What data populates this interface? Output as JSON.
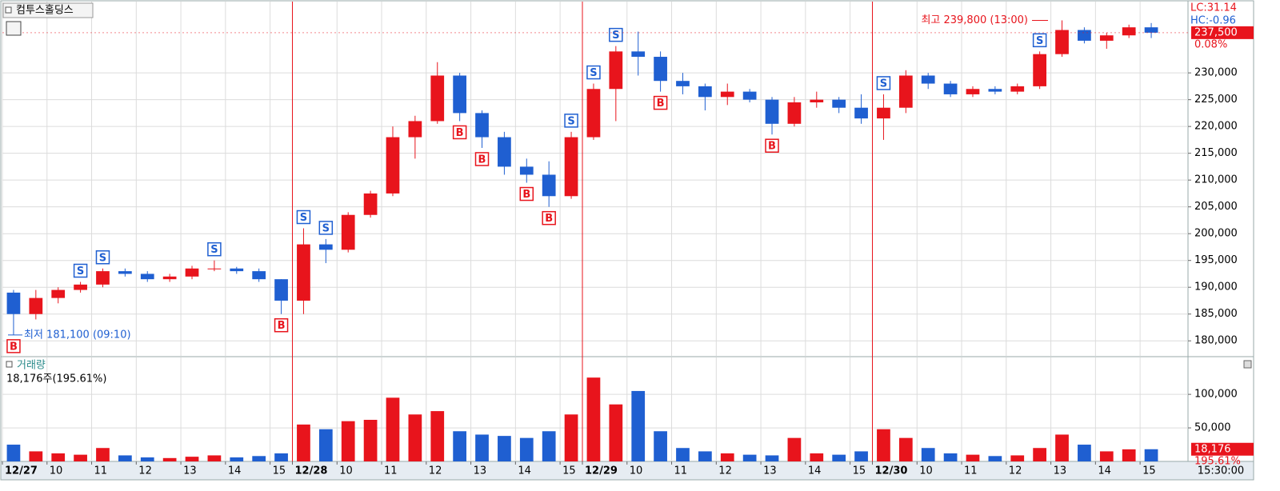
{
  "chart_data": {
    "type": "candlestick",
    "title": "컴투스홀딩스",
    "volume_title": "거래량",
    "volume_summary": "18,176주(195.61%)",
    "indicator_lc": "LC:31.14",
    "indicator_hc": "HC:-0.96",
    "time_label": "15:30:00",
    "up_color": "#e8141c",
    "down_color": "#1f5fd1",
    "categories": [
      "12/27",
      null,
      "10",
      null,
      "11",
      null,
      "12",
      null,
      "13",
      null,
      "14",
      null,
      "15",
      "12/28",
      null,
      "10",
      null,
      "11",
      null,
      "12",
      null,
      "13",
      null,
      "14",
      null,
      "15",
      "12/29",
      null,
      "10",
      null,
      "11",
      null,
      "12",
      null,
      "13",
      null,
      "14",
      null,
      "15",
      "12/30",
      null,
      "10",
      null,
      "11",
      null,
      "12",
      null,
      "13",
      null,
      "14",
      null,
      "15"
    ],
    "open": [
      189000,
      185000,
      188000,
      189500,
      190500,
      193000,
      192500,
      191500,
      192000,
      193500,
      193500,
      193000,
      191500,
      187500,
      198000,
      197000,
      203500,
      207500,
      218000,
      221000,
      229500,
      222500,
      218000,
      212500,
      211000,
      207000,
      218000,
      227000,
      234000,
      233000,
      228500,
      227500,
      225500,
      226500,
      225000,
      220500,
      224500,
      225000,
      223500,
      221500,
      223500,
      229500,
      228000,
      226000,
      227000,
      226500,
      227500,
      233500,
      238000,
      236000,
      237000,
      238500
    ],
    "high": [
      189500,
      189500,
      190000,
      191000,
      193500,
      193500,
      193000,
      192500,
      194000,
      195000,
      193800,
      193500,
      191500,
      201000,
      199000,
      204000,
      208000,
      220000,
      222000,
      232000,
      230000,
      223000,
      219000,
      214000,
      213500,
      219000,
      228000,
      235000,
      237700,
      234000,
      230000,
      228000,
      228000,
      227000,
      225500,
      225500,
      226500,
      225500,
      226000,
      226000,
      230500,
      230000,
      228500,
      227500,
      227500,
      228000,
      234000,
      239800,
      238500,
      237500,
      239000,
      239300
    ],
    "low": [
      181100,
      184000,
      187000,
      189000,
      190000,
      192000,
      191000,
      191000,
      191500,
      193000,
      192500,
      191000,
      185000,
      185000,
      194500,
      196500,
      203000,
      207000,
      214000,
      220500,
      221000,
      216000,
      211000,
      209500,
      205000,
      206500,
      217500,
      221000,
      229500,
      226500,
      226000,
      223000,
      224000,
      224500,
      218500,
      220000,
      223500,
      222500,
      220500,
      217500,
      222500,
      227000,
      225500,
      225500,
      226000,
      226000,
      227000,
      233000,
      235500,
      234500,
      236500,
      236500
    ],
    "close": [
      185000,
      188000,
      189500,
      190500,
      193000,
      192500,
      191500,
      192000,
      193500,
      193500,
      193000,
      191500,
      187500,
      198000,
      197000,
      203500,
      207500,
      218000,
      221000,
      229500,
      222500,
      218000,
      212500,
      211000,
      207000,
      218000,
      227000,
      234000,
      233000,
      228500,
      227500,
      225500,
      226500,
      225000,
      220500,
      224500,
      225000,
      223500,
      221500,
      223500,
      229500,
      228000,
      226000,
      227000,
      226500,
      227500,
      233500,
      238000,
      236000,
      237000,
      238500,
      237500
    ],
    "volume": [
      25000,
      15000,
      12000,
      10000,
      20000,
      9000,
      6000,
      5000,
      7000,
      9000,
      6000,
      8000,
      12000,
      55000,
      48000,
      60000,
      62000,
      95000,
      70000,
      75000,
      45000,
      40000,
      38000,
      35000,
      45000,
      70000,
      125000,
      85000,
      105000,
      45000,
      20000,
      15000,
      12000,
      10000,
      9000,
      35000,
      12000,
      10000,
      15000,
      48000,
      35000,
      20000,
      12000,
      10000,
      8000,
      9000,
      20000,
      40000,
      25000,
      15000,
      18000,
      18176
    ],
    "signals": [
      {
        "candle": 0,
        "label": "B"
      },
      {
        "candle": 3,
        "label": "S"
      },
      {
        "candle": 4,
        "label": "S"
      },
      {
        "candle": 9,
        "label": "S"
      },
      {
        "candle": 12,
        "label": "B"
      },
      {
        "candle": 13,
        "label": "S"
      },
      {
        "candle": 14,
        "label": "S"
      },
      {
        "candle": 20,
        "label": "B"
      },
      {
        "candle": 21,
        "label": "B"
      },
      {
        "candle": 23,
        "label": "B"
      },
      {
        "candle": 24,
        "label": "B"
      },
      {
        "candle": 25,
        "label": "S"
      },
      {
        "candle": 26,
        "label": "S"
      },
      {
        "candle": 27,
        "label": "S"
      },
      {
        "candle": 29,
        "label": "B"
      },
      {
        "candle": 34,
        "label": "B"
      },
      {
        "candle": 39,
        "label": "S"
      },
      {
        "candle": 46,
        "label": "S"
      }
    ],
    "high_note": {
      "value": 239800,
      "label": "최고 239,800 (13:00)"
    },
    "low_note": {
      "value": 181100,
      "label": "최저 181,100 (09:10)"
    },
    "last_price": {
      "value": 237500,
      "label": "237,500"
    },
    "change_pct": "0.08%",
    "last_volume": {
      "value": 18176,
      "label": "18,176"
    },
    "volume_ratio": "195.61%",
    "ylim": [
      177200,
      243300
    ],
    "yticks": [
      {
        "value": 180000,
        "label": "180,000"
      },
      {
        "value": 185000,
        "label": "185,000"
      },
      {
        "value": 190000,
        "label": "190,000"
      },
      {
        "value": 195000,
        "label": "195,000"
      },
      {
        "value": 200000,
        "label": "200,000"
      },
      {
        "value": 205000,
        "label": "205,000"
      },
      {
        "value": 210000,
        "label": "210,000"
      },
      {
        "value": 215000,
        "label": "215,000"
      },
      {
        "value": 220000,
        "label": "220,000"
      },
      {
        "value": 225000,
        "label": "225,000"
      },
      {
        "value": 230000,
        "label": "230,000"
      }
    ],
    "volume_ylim": [
      0,
      155000
    ],
    "volume_yticks": [
      {
        "value": 50000,
        "label": "50,000"
      },
      {
        "value": 100000,
        "label": "100,000"
      }
    ],
    "grid": true
  }
}
